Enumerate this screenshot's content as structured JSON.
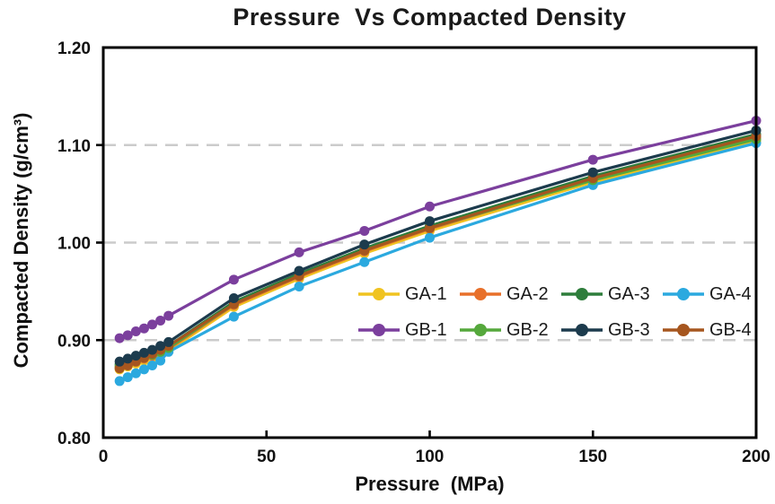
{
  "title": "Pressure  Vs Compacted Density",
  "colors": {
    "axis": "#000000",
    "grid": "#cbcbcb",
    "title_text": "#1a1a1a"
  },
  "chart_data": {
    "type": "line",
    "title": "Pressure  Vs Compacted Density",
    "xlabel": "Pressure  (MPa)",
    "ylabel": "Compacted Density (g/cm³)",
    "xlim": [
      0,
      200
    ],
    "ylim": [
      0.8,
      1.2
    ],
    "x_ticks": [
      0,
      50,
      100,
      150,
      200
    ],
    "y_ticks": [
      "0.80",
      "0.90",
      "1.00",
      "1.10",
      "1.20"
    ],
    "gridlines": [
      0.9,
      1.0,
      1.1
    ],
    "grid_style": "dashed",
    "legend_position": "inside-lower-right",
    "legend_rows": [
      [
        "GA-1",
        "GA-2",
        "GA-3",
        "GA-4"
      ],
      [
        "GB-1",
        "GB-2",
        "GB-3",
        "GB-4"
      ]
    ],
    "x": [
      5,
      7.5,
      10,
      12.5,
      15,
      17.5,
      20,
      40,
      60,
      80,
      100,
      150,
      200
    ],
    "series": [
      {
        "name": "GA-1",
        "color": "#F0C320",
        "values": [
          0.87,
          0.873,
          0.876,
          0.879,
          0.882,
          0.885,
          0.889,
          0.934,
          0.963,
          0.989,
          1.012,
          1.062,
          1.104
        ]
      },
      {
        "name": "GA-2",
        "color": "#E8702A",
        "values": [
          0.872,
          0.875,
          0.878,
          0.881,
          0.884,
          0.887,
          0.891,
          0.936,
          0.965,
          0.991,
          1.014,
          1.065,
          1.107
        ]
      },
      {
        "name": "GA-3",
        "color": "#2E7D3B",
        "values": [
          0.875,
          0.878,
          0.881,
          0.884,
          0.887,
          0.89,
          0.894,
          0.939,
          0.968,
          0.994,
          1.017,
          1.068,
          1.111
        ]
      },
      {
        "name": "GA-4",
        "color": "#2BA9DF",
        "values": [
          0.858,
          0.862,
          0.866,
          0.87,
          0.874,
          0.879,
          0.888,
          0.924,
          0.955,
          0.98,
          1.005,
          1.059,
          1.102
        ]
      },
      {
        "name": "GB-2",
        "color": "#55A83C",
        "values": [
          0.873,
          0.876,
          0.879,
          0.882,
          0.885,
          0.888,
          0.892,
          0.937,
          0.966,
          0.992,
          1.015,
          1.064,
          1.106
        ]
      },
      {
        "name": "GB-4",
        "color": "#A6561F",
        "values": [
          0.871,
          0.874,
          0.878,
          0.882,
          0.886,
          0.89,
          0.894,
          0.937,
          0.966,
          0.992,
          1.015,
          1.066,
          1.109
        ]
      },
      {
        "name": "GB-3",
        "color": "#1C3B4D",
        "values": [
          0.878,
          0.881,
          0.884,
          0.887,
          0.89,
          0.894,
          0.898,
          0.943,
          0.971,
          0.998,
          1.022,
          1.072,
          1.115
        ]
      },
      {
        "name": "GB-1",
        "color": "#7B3F9D",
        "values": [
          0.902,
          0.905,
          0.909,
          0.912,
          0.916,
          0.92,
          0.925,
          0.962,
          0.99,
          1.012,
          1.037,
          1.085,
          1.125
        ]
      }
    ]
  }
}
